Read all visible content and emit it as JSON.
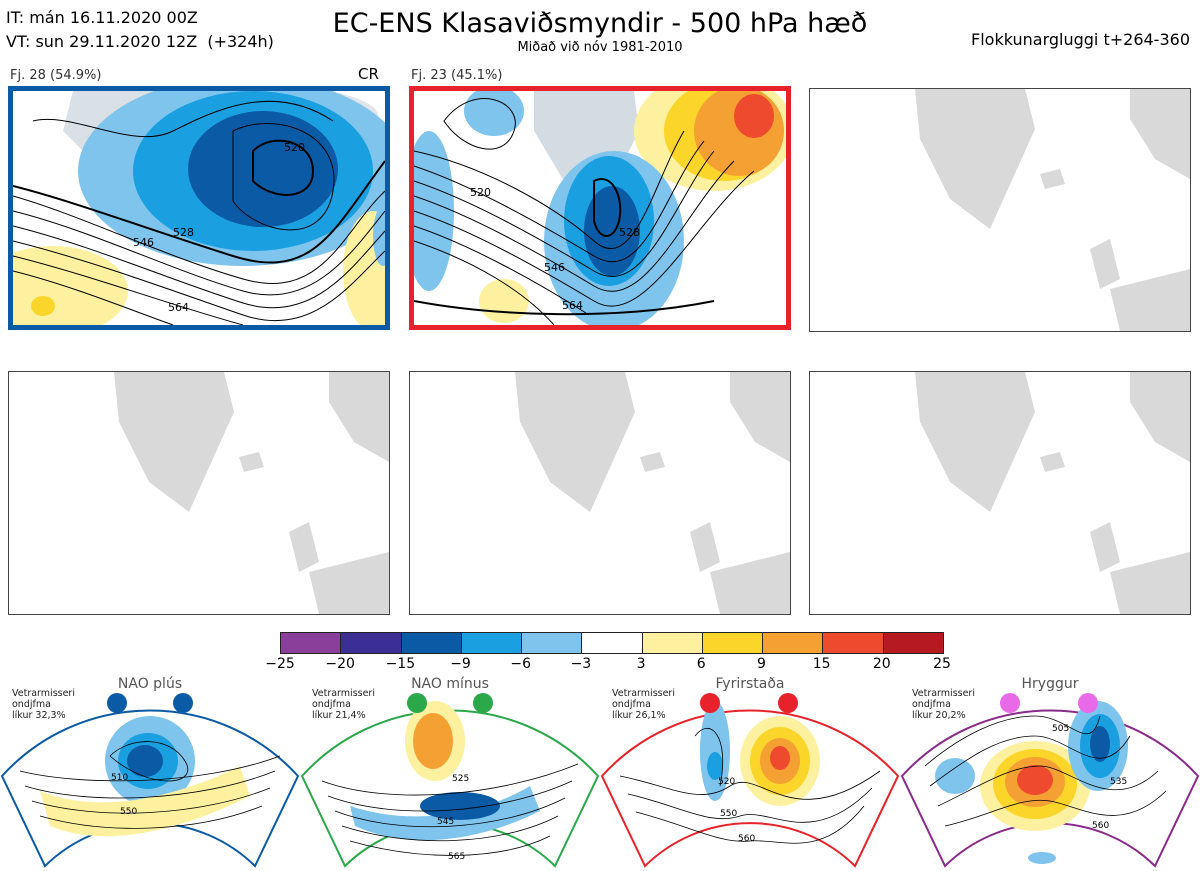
{
  "header": {
    "issue_line": "IT: mán 16.11.2020 00Z",
    "valid_line": "VT: sun 29.11.2020 12Z  (+324h)",
    "title": "EC-ENS Klasaviðsmyndir - 500 hPa hæð",
    "subtitle": "Miðað við nóv 1981-2010",
    "window": "Flokkunargluggi t+264-360"
  },
  "panels": [
    {
      "label": "Fj. 28 (54.9%)",
      "tag": "CR",
      "border": "#0b5aa6",
      "contours": [
        "520",
        "528",
        "546",
        "564"
      ]
    },
    {
      "label": "Fj. 23 (45.1%)",
      "tag": "",
      "border": "#e8222a",
      "contours": [
        "520",
        "528",
        "546",
        "564"
      ]
    },
    {
      "label": "",
      "tag": ""
    },
    {
      "label": "",
      "tag": ""
    },
    {
      "label": "",
      "tag": ""
    },
    {
      "label": "",
      "tag": ""
    }
  ],
  "colorbar": {
    "colors": [
      "#8a3f9a",
      "#3b2e94",
      "#0b5aa6",
      "#1aa0e0",
      "#7fc4ec",
      "#ffffff",
      "#fdf1a0",
      "#fcd52a",
      "#f5a033",
      "#ee4a2e",
      "#b61a20"
    ],
    "ticks": [
      "−25",
      "−20",
      "−15",
      "−9",
      "−6",
      "−3",
      "3",
      "6",
      "9",
      "15",
      "20",
      "25"
    ]
  },
  "regimes": [
    {
      "name": "NAO plús",
      "note": [
        "Vetrarmisseri",
        "ondjfma",
        "líkur 32,3%"
      ],
      "color": "#0b5aa6",
      "labels": [
        "510",
        "550"
      ]
    },
    {
      "name": "NAO mínus",
      "note": [
        "Vetrarmisseri",
        "ondjfma",
        "líkur 21,4%"
      ],
      "color": "#2aa84a",
      "labels": [
        "525",
        "545",
        "565"
      ]
    },
    {
      "name": "Fyrirstaða",
      "note": [
        "Vetrarmisseri",
        "ondjfma",
        "líkur 26,1%"
      ],
      "color": "#e8222a",
      "labels": [
        "520",
        "550",
        "560"
      ]
    },
    {
      "name": "Hryggur",
      "note": [
        "Vetrarmisseri",
        "ondjfma",
        "líkur 20,2%"
      ],
      "color": "#e86ae8",
      "border": "#8a2a8a",
      "labels": [
        "505",
        "535",
        "560"
      ]
    }
  ]
}
